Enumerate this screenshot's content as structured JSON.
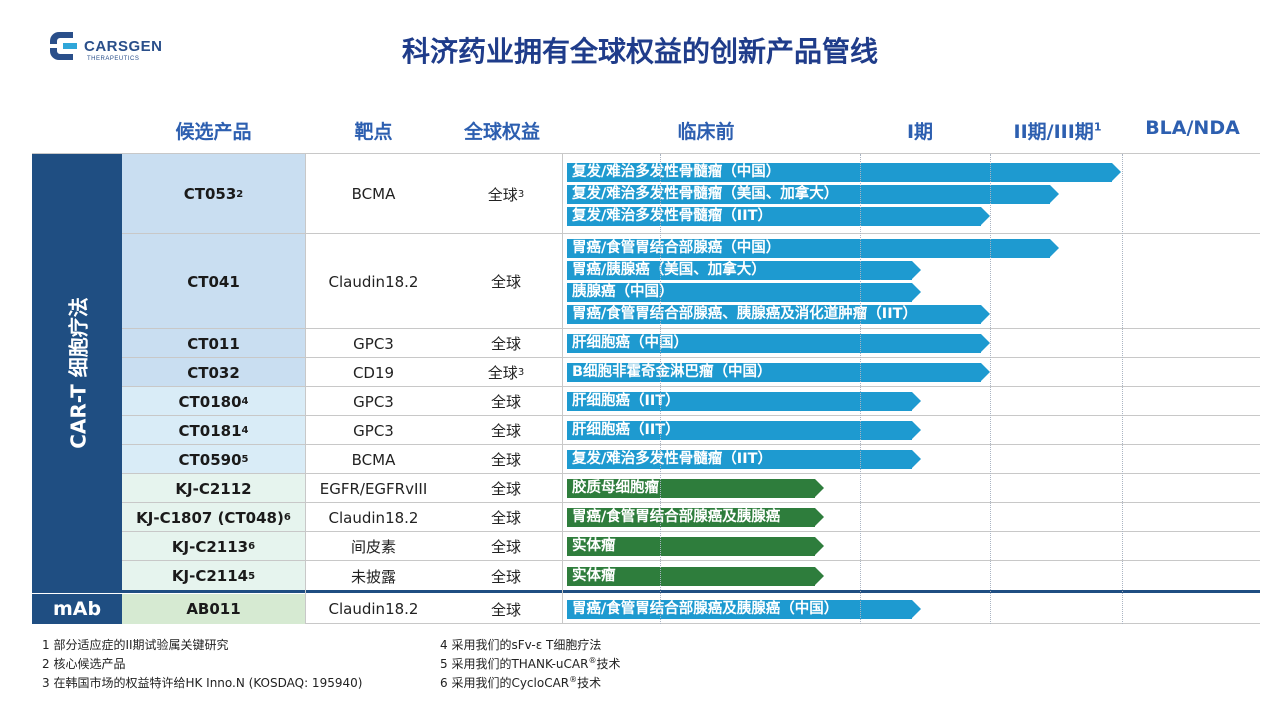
{
  "brand": {
    "name": "CARSGEN",
    "sub": "THERAPEUTICS"
  },
  "title": "科济药业拥有全球权益的创新产品管线",
  "columns": {
    "candidate": "候选产品",
    "target": "靶点",
    "rights": "全球权益",
    "preclinical": "临床前",
    "phase1": "I期",
    "phase23": "II期/III期",
    "phase23_sup": "1",
    "bla": "BLA/NDA"
  },
  "categories": {
    "cart": "CAR-T 细胞疗法",
    "mab": "mAb"
  },
  "rows": [
    {
      "name": "CT053",
      "sup": "2",
      "target": "BCMA",
      "rights": "全球",
      "rights_sup": "3",
      "bars": [
        {
          "label": "复发/难治多发性骨髓瘤（中国）",
          "color": "blue",
          "progress": 0.79
        },
        {
          "label": "复发/难治多发性骨髓瘤（美国、加拿大）",
          "color": "blue",
          "progress": 0.7
        },
        {
          "label": "复发/难治多发性骨髓瘤（IIT）",
          "color": "blue",
          "progress": 0.6
        }
      ]
    },
    {
      "name": "CT041",
      "sup": "",
      "target": "Claudin18.2",
      "rights": "全球",
      "rights_sup": "",
      "bars": [
        {
          "label": "胃癌/食管胃结合部腺癌（中国）",
          "color": "blue",
          "progress": 0.7
        },
        {
          "label": "胃癌/胰腺癌（美国、加拿大）",
          "color": "blue",
          "progress": 0.5
        },
        {
          "label": "胰腺癌（中国）",
          "color": "blue",
          "progress": 0.5
        },
        {
          "label": "胃癌/食管胃结合部腺癌、胰腺癌及消化道肿瘤（IIT）",
          "color": "blue",
          "progress": 0.6
        }
      ]
    },
    {
      "name": "CT011",
      "sup": "",
      "target": "GPC3",
      "rights": "全球",
      "rights_sup": "",
      "bars": [
        {
          "label": "肝细胞癌（中国）",
          "color": "blue",
          "progress": 0.6
        }
      ]
    },
    {
      "name": "CT032",
      "sup": "",
      "target": "CD19",
      "rights": "全球",
      "rights_sup": "3",
      "bars": [
        {
          "label": "B细胞非霍奇金淋巴瘤（中国）",
          "color": "blue",
          "progress": 0.6
        }
      ]
    },
    {
      "name": "CT0180",
      "sup": "4",
      "target": "GPC3",
      "rights": "全球",
      "rights_sup": "",
      "bars": [
        {
          "label": "肝细胞癌（IIT）",
          "color": "blue",
          "progress": 0.5
        }
      ]
    },
    {
      "name": "CT0181",
      "sup": "4",
      "target": "GPC3",
      "rights": "全球",
      "rights_sup": "",
      "bars": [
        {
          "label": "肝细胞癌（IIT）",
          "color": "blue",
          "progress": 0.5
        }
      ]
    },
    {
      "name": "CT0590",
      "sup": "5",
      "target": "BCMA",
      "rights": "全球",
      "rights_sup": "",
      "bars": [
        {
          "label": "复发/难治多发性骨髓瘤（IIT）",
          "color": "blue",
          "progress": 0.5
        }
      ]
    },
    {
      "name": "KJ-C2112",
      "sup": "",
      "target": "EGFR/EGFRvIII",
      "rights": "全球",
      "rights_sup": "",
      "bars": [
        {
          "label": "胶质母细胞瘤",
          "color": "green",
          "progress": 0.36
        }
      ]
    },
    {
      "name": "KJ-C1807 (CT048)",
      "sup": "6",
      "target": "Claudin18.2",
      "rights": "全球",
      "rights_sup": "",
      "bars": [
        {
          "label": "胃癌/食管胃结合部腺癌及胰腺癌",
          "color": "green",
          "progress": 0.36
        }
      ]
    },
    {
      "name": "KJ-C2113",
      "sup": "6",
      "target": "间皮素",
      "rights": "全球",
      "rights_sup": "",
      "bars": [
        {
          "label": "实体瘤",
          "color": "green",
          "progress": 0.36
        }
      ]
    },
    {
      "name": "KJ-C2114",
      "sup": "5",
      "target": "未披露",
      "rights": "全球",
      "rights_sup": "",
      "bars": [
        {
          "label": "实体瘤",
          "color": "green",
          "progress": 0.36
        }
      ]
    },
    {
      "name": "AB011",
      "sup": "",
      "target": "Claudin18.2",
      "rights": "全球",
      "rights_sup": "",
      "bars": [
        {
          "label": "胃癌/食管胃结合部腺癌及胰腺癌（中国）",
          "color": "blue",
          "progress": 0.5
        }
      ]
    }
  ],
  "footnotes": {
    "left": [
      "1 部分适应症的II期试验属关键研究",
      "2 核心候选产品",
      "3 在韩国市场的权益特许给HK  Inno.N (KOSDAQ: 195940)"
    ],
    "right": [
      {
        "text": "4 采用我们的sFv-ε  T细胞疗法",
        "sup": "",
        "tail": ""
      },
      {
        "text": "5 采用我们的THANK-uCAR",
        "sup": "®",
        "tail": "技术"
      },
      {
        "text": "6 采用我们的CycloCAR",
        "sup": "®",
        "tail": "技术"
      }
    ]
  },
  "colors": {
    "brand_blue": "#1f4e82",
    "bar_blue": "#1e9ad0",
    "bar_green": "#2e7d3c",
    "cand_light_blue": "#c9def1",
    "cand_pale_blue": "#d9ecf7",
    "cand_pale_green": "#e6f4ee",
    "cand_mab_green": "#d6ead2"
  }
}
